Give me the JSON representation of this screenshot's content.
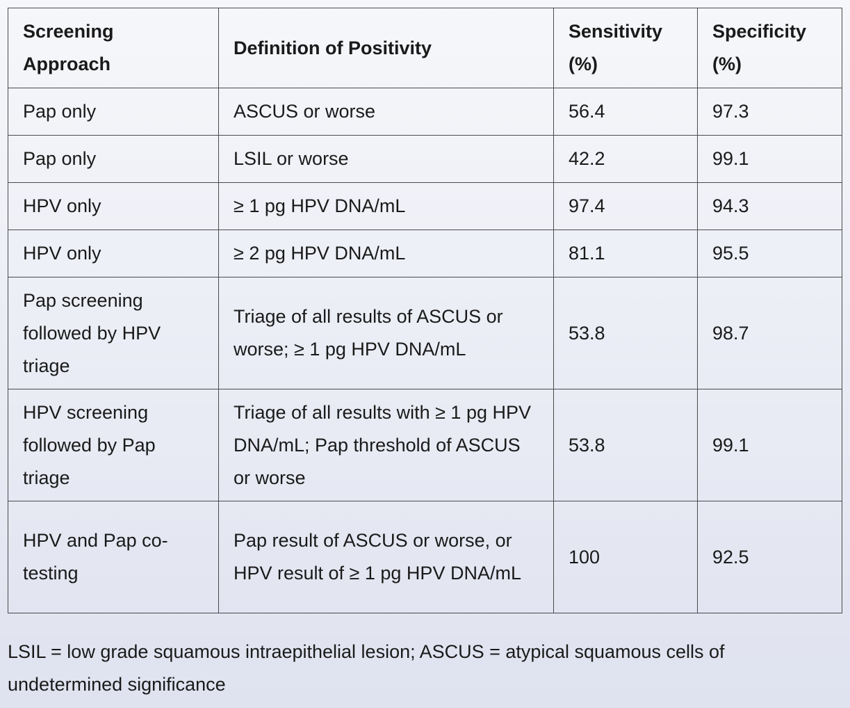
{
  "table": {
    "headers": [
      "Screening Approach",
      "Definition of Positivity",
      "Sensitivity (%)",
      "Specificity (%)"
    ],
    "rows": [
      [
        "Pap only",
        "ASCUS or worse",
        "56.4",
        "97.3"
      ],
      [
        "Pap only",
        "LSIL or worse",
        "42.2",
        "99.1"
      ],
      [
        "HPV only",
        "≥ 1 pg HPV DNA/mL",
        "97.4",
        "94.3"
      ],
      [
        "HPV only",
        "≥ 2 pg HPV DNA/mL",
        "81.1",
        "95.5"
      ],
      [
        "Pap screening followed by HPV triage",
        "Triage of all results of ASCUS or worse; ≥ 1 pg HPV DNA/mL",
        "53.8",
        "98.7"
      ],
      [
        "HPV screening followed by Pap triage",
        "Triage of all results with ≥ 1 pg HPV DNA/mL; Pap threshold of ASCUS or worse",
        "53.8",
        "99.1"
      ],
      [
        "HPV and Pap co-testing",
        "Pap result of ASCUS or worse, or HPV result of ≥ 1 pg HPV DNA/mL",
        "100",
        "92.5"
      ]
    ]
  },
  "footnote": "LSIL = low grade squamous intraepithelial lesion; ASCUS = atypical squamous cells of undetermined significance"
}
